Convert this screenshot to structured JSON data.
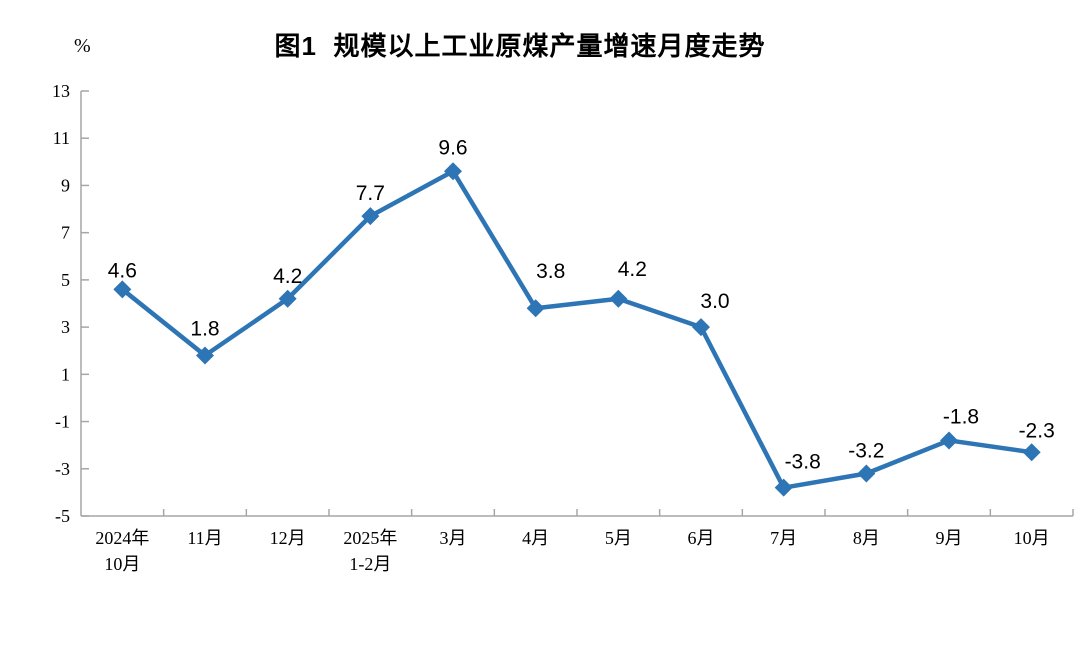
{
  "chart_data": {
    "type": "line",
    "title": "图1  规模以上工业原煤产量增速月度走势",
    "ylabel": "%",
    "xlabel": "",
    "categories": [
      "2024年\n10月",
      "11月",
      "12月",
      "2025年\n1-2月",
      "3月",
      "4月",
      "5月",
      "6月",
      "7月",
      "8月",
      "9月",
      "10月"
    ],
    "values": [
      4.6,
      1.8,
      4.2,
      7.7,
      9.6,
      3.8,
      4.2,
      3.0,
      -3.8,
      -3.2,
      -1.8,
      -2.3
    ],
    "data_labels": [
      "4.6",
      "1.8",
      "4.2",
      "7.7",
      "9.6",
      "3.8",
      "4.2",
      "3.0",
      "-3.8",
      "-3.2",
      "-1.8",
      "-2.3"
    ],
    "yticks": [
      13,
      11,
      9,
      7,
      5,
      3,
      1,
      -1,
      -3,
      -5
    ],
    "ylim": [
      -5,
      13
    ],
    "grid": false,
    "legend": "none",
    "marker": "diamond",
    "colors": {
      "line": "#2E75B6",
      "marker": "#2E75B6",
      "axis": "#A6A6A6",
      "text": "#000000"
    }
  }
}
